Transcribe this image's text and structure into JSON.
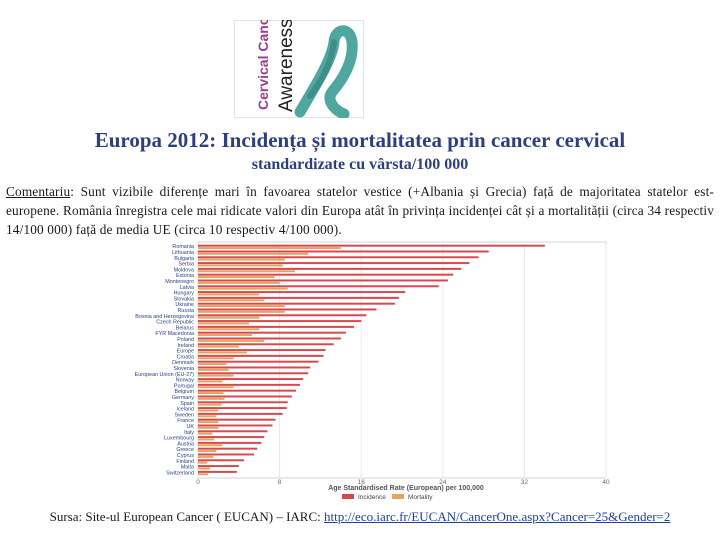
{
  "logo": {
    "text_line1": "Cervical Cancer",
    "text_line2": "Awareness",
    "ribbon_color": "#4fa8a0",
    "text_color": "#a23b8a"
  },
  "title": "Europa 2012: Incidența și mortalitatea prin cancer cervical",
  "subtitle": "standardizate cu vârsta/100 000",
  "comment": {
    "label": "Comentariu",
    "text": ": Sunt vizibile diferențe mari în favoarea statelor vestice (+Albania și Grecia) față de majoritatea statelor est-europene. România înregistra cele mai ridicate valori din Europa atât în privința incidenței cât și a mortalității (circa 34 respectiv 14/100 000) față de media UE (circa 10 respectiv 4/100 000)."
  },
  "chart_data": {
    "type": "bar",
    "orientation": "horizontal",
    "xlabel": "Age Standardised Rate (European) per 100,000",
    "xlim": [
      0,
      40
    ],
    "xticks": [
      0,
      8,
      16,
      24,
      32,
      40
    ],
    "categories": [
      "Romania",
      "Lithuania",
      "Bulgaria",
      "Serbia",
      "Moldova",
      "Estonia",
      "Montenegro",
      "Latvia",
      "Hungary",
      "Slovakia",
      "Ukraine",
      "Russia",
      "Bosnia and Herzegovina",
      "Czech Republic",
      "Belarus",
      "FYR Macedonia",
      "Poland",
      "Ireland",
      "Europe",
      "Croatia",
      "Denmark",
      "Slovenia",
      "European Union (EU-27)",
      "Norway",
      "Portugal",
      "Belgium",
      "Germany",
      "Spain",
      "Iceland",
      "Sweden",
      "France",
      "UK",
      "Italy",
      "Luxembourg",
      "Austria",
      "Greece",
      "Cyprus",
      "Finland",
      "Malta",
      "Switzerland"
    ],
    "series": [
      {
        "name": "Incidence",
        "color": "#d8474e",
        "values": [
          34,
          28.5,
          27.5,
          26.6,
          25.8,
          25.0,
          24.5,
          23.6,
          20.3,
          19.7,
          19.3,
          17.5,
          16.5,
          16.0,
          15.3,
          14.5,
          14.0,
          13.3,
          12.5,
          12.3,
          11.8,
          11.0,
          10.8,
          10.3,
          10.0,
          9.6,
          9.2,
          8.8,
          8.7,
          8.3,
          7.6,
          7.3,
          6.8,
          6.5,
          6.2,
          5.8,
          5.5,
          4.5,
          4.0,
          3.8
        ]
      },
      {
        "name": "Mortality",
        "color": "#e8a35a",
        "values": [
          14,
          10.8,
          8.5,
          8.3,
          9.5,
          7.5,
          8.0,
          8.8,
          6.0,
          6.5,
          8.5,
          8.5,
          6.0,
          5.0,
          6.0,
          5.3,
          6.5,
          4.0,
          4.8,
          3.5,
          2.8,
          3.0,
          3.5,
          2.4,
          3.5,
          2.5,
          2.6,
          2.3,
          2.0,
          1.8,
          2.0,
          2.0,
          1.4,
          1.6,
          2.4,
          1.8,
          1.5,
          0.9,
          1.2,
          1.0
        ]
      }
    ]
  },
  "source": {
    "prefix": "Sursa: Site-ul European Cancer ( EUCAN) – IARC: ",
    "link": "http://eco.iarc.fr/EUCAN/CancerOne.aspx?Cancer=25&Gender=2"
  }
}
